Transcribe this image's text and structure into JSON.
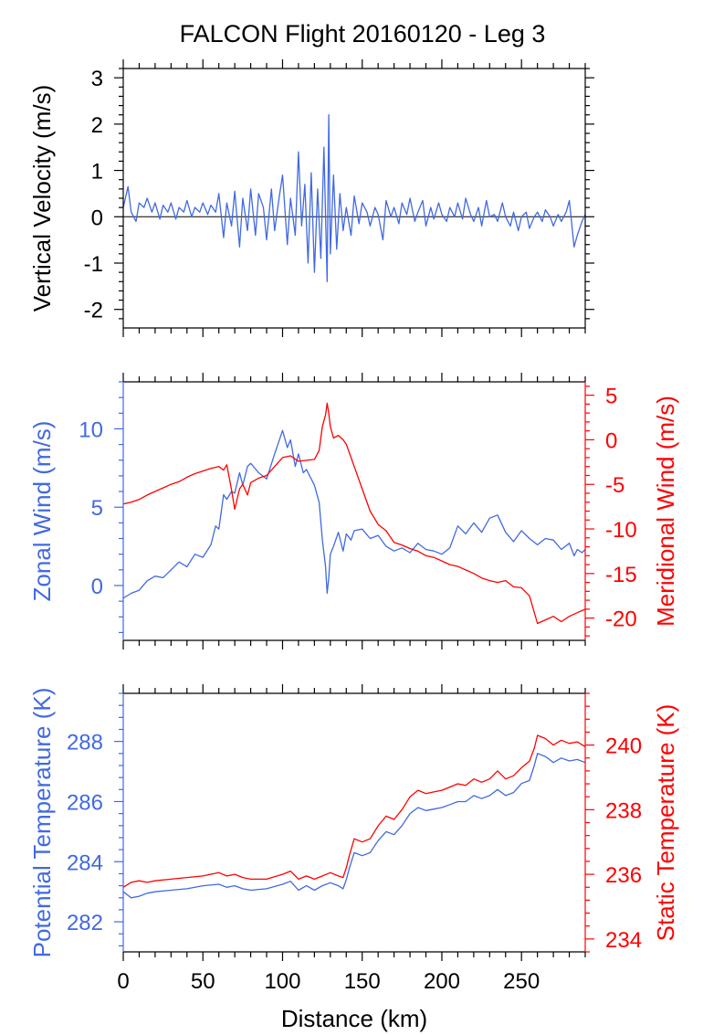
{
  "title": "FALCON Flight 20160120 - Leg 3",
  "colors": {
    "blue": "#4169e1",
    "red": "#ff0000",
    "black": "#000000"
  },
  "chart_data": [
    {
      "type": "line",
      "xlabel": "Distance (km)",
      "xlim": [
        0,
        290
      ],
      "xticks": [
        0,
        50,
        100,
        150,
        200,
        250
      ],
      "ylabel": "Vertical Velocity (m/s)",
      "ylim": [
        -2.4,
        3.2
      ],
      "yticks": [
        -2,
        -1,
        0,
        1,
        2,
        3
      ],
      "ytick_labels": [
        "-2",
        "-1",
        "0",
        "1",
        "2",
        "3"
      ],
      "zero_line": true,
      "series": [
        {
          "color": "#4169e1",
          "x": [
            0,
            3,
            5,
            8,
            10,
            13,
            15,
            18,
            20,
            23,
            25,
            28,
            30,
            33,
            35,
            38,
            40,
            43,
            45,
            48,
            50,
            53,
            55,
            58,
            60,
            63,
            65,
            68,
            70,
            73,
            75,
            78,
            80,
            83,
            85,
            88,
            90,
            93,
            95,
            98,
            100,
            103,
            105,
            108,
            110,
            112,
            114,
            116,
            118,
            120,
            122,
            124,
            126,
            128,
            129,
            130,
            132,
            134,
            136,
            138,
            140,
            143,
            145,
            148,
            150,
            153,
            155,
            158,
            160,
            163,
            165,
            168,
            170,
            173,
            175,
            178,
            180,
            183,
            185,
            188,
            190,
            193,
            195,
            198,
            200,
            203,
            205,
            208,
            210,
            213,
            215,
            218,
            220,
            223,
            225,
            228,
            230,
            233,
            235,
            238,
            240,
            243,
            245,
            248,
            250,
            253,
            255,
            258,
            260,
            263,
            265,
            268,
            270,
            273,
            275,
            278,
            280,
            283,
            285,
            288,
            290
          ],
          "y": [
            0.2,
            0.65,
            0.1,
            -0.1,
            0.3,
            0.2,
            0.4,
            0.1,
            0.3,
            -0.05,
            0.25,
            0.1,
            0.3,
            -0.05,
            0.2,
            0.1,
            0.35,
            0.0,
            0.2,
            0.1,
            0.3,
            0.05,
            0.25,
            0.1,
            0.5,
            -0.45,
            0.3,
            -0.2,
            0.55,
            -0.65,
            0.4,
            -0.3,
            0.6,
            -0.4,
            0.5,
            0.2,
            -0.5,
            0.6,
            -0.3,
            0.45,
            0.9,
            -0.6,
            0.4,
            -0.4,
            1.4,
            -0.2,
            0.7,
            -1.0,
            0.95,
            -1.2,
            0.6,
            -0.9,
            1.5,
            -1.4,
            2.2,
            -0.8,
            0.9,
            -0.7,
            0.5,
            -0.3,
            0.2,
            -0.4,
            0.45,
            -0.15,
            0.3,
            0.1,
            -0.2,
            0.2,
            0.05,
            -0.5,
            0.35,
            0.0,
            0.2,
            -0.15,
            0.3,
            0.05,
            0.4,
            -0.1,
            0.1,
            0.35,
            -0.2,
            0.2,
            -0.05,
            0.3,
            0.05,
            -0.1,
            0.2,
            0.0,
            0.3,
            -0.05,
            0.4,
            0.05,
            -0.1,
            0.2,
            -0.2,
            0.35,
            0.0,
            0.05,
            -0.1,
            0.3,
            0.0,
            -0.2,
            0.1,
            -0.3,
            0.0,
            0.1,
            -0.25,
            0.0,
            0.1,
            -0.1,
            0.15,
            0.0,
            -0.2,
            0.05,
            -0.1,
            0.1,
            0.35,
            -0.65,
            -0.4,
            -0.1,
            0.05
          ]
        }
      ]
    },
    {
      "type": "line",
      "xlabel": "Distance (km)",
      "xlim": [
        0,
        290
      ],
      "xticks": [
        0,
        50,
        100,
        150,
        200,
        250
      ],
      "ylabel": "Zonal Wind (m/s)",
      "ylim": [
        -3.5,
        13
      ],
      "yticks": [
        0,
        5,
        10
      ],
      "ytick_labels": [
        "0",
        "5",
        "10"
      ],
      "y2label": "Meridional Wind (m/s)",
      "y2lim": [
        -22.5,
        6.5
      ],
      "y2ticks": [
        -20,
        -15,
        -10,
        -5,
        0,
        5
      ],
      "y2tick_labels": [
        "-20",
        "-15",
        "-10",
        "-5",
        "0",
        "5"
      ],
      "series": [
        {
          "color": "#4169e1",
          "axis": "left",
          "x": [
            0,
            5,
            10,
            15,
            20,
            25,
            30,
            35,
            40,
            45,
            50,
            55,
            58,
            60,
            63,
            65,
            68,
            70,
            73,
            75,
            78,
            80,
            85,
            90,
            95,
            100,
            103,
            105,
            108,
            110,
            113,
            115,
            118,
            120,
            123,
            125,
            127,
            128,
            129,
            130,
            132,
            135,
            138,
            140,
            143,
            145,
            150,
            155,
            160,
            165,
            170,
            175,
            180,
            185,
            190,
            195,
            200,
            205,
            210,
            215,
            220,
            225,
            230,
            235,
            240,
            245,
            250,
            255,
            260,
            265,
            270,
            275,
            280,
            283,
            285,
            288,
            290
          ],
          "y": [
            -0.8,
            -0.5,
            -0.3,
            0.3,
            0.6,
            0.5,
            1.0,
            1.5,
            1.2,
            2.0,
            1.8,
            2.6,
            3.8,
            3.6,
            5.8,
            5.5,
            6.0,
            5.9,
            7.2,
            6.4,
            7.6,
            7.8,
            7.2,
            6.8,
            8.4,
            9.9,
            8.8,
            9.3,
            7.6,
            8.4,
            7.2,
            7.4,
            6.8,
            6.4,
            5.3,
            2.9,
            1.2,
            -0.5,
            0.5,
            2.0,
            2.5,
            3.4,
            2.2,
            3.3,
            2.9,
            3.5,
            3.6,
            3.0,
            3.2,
            2.5,
            2.2,
            2.4,
            2.1,
            2.7,
            2.3,
            2.2,
            2.0,
            2.4,
            3.8,
            3.3,
            4.0,
            3.4,
            4.3,
            4.5,
            3.4,
            2.8,
            3.5,
            3.0,
            2.6,
            3.0,
            2.9,
            2.3,
            2.7,
            1.9,
            2.3,
            2.1,
            2.3
          ]
        },
        {
          "color": "#ff0000",
          "axis": "right",
          "x": [
            0,
            5,
            10,
            15,
            20,
            25,
            30,
            35,
            40,
            45,
            50,
            55,
            60,
            63,
            65,
            68,
            70,
            73,
            75,
            78,
            80,
            85,
            90,
            95,
            100,
            105,
            110,
            115,
            120,
            123,
            125,
            127,
            128,
            129,
            130,
            132,
            135,
            138,
            140,
            145,
            150,
            155,
            160,
            165,
            170,
            175,
            180,
            185,
            190,
            195,
            200,
            205,
            210,
            215,
            220,
            225,
            230,
            235,
            240,
            245,
            250,
            255,
            260,
            265,
            270,
            275,
            280,
            285,
            290
          ],
          "y": [
            -7.2,
            -7.0,
            -6.7,
            -6.2,
            -5.8,
            -5.4,
            -5.0,
            -4.7,
            -4.2,
            -3.8,
            -3.5,
            -3.2,
            -3.0,
            -3.4,
            -2.8,
            -5.6,
            -7.8,
            -5.5,
            -5.0,
            -6.2,
            -4.8,
            -4.3,
            -4.0,
            -3.0,
            -2.0,
            -1.8,
            -2.4,
            -2.3,
            -2.2,
            -1.2,
            1.5,
            2.8,
            4.1,
            3.0,
            1.5,
            0.2,
            0.5,
            0.0,
            -0.5,
            -3.0,
            -5.5,
            -8.0,
            -9.5,
            -10.2,
            -11.5,
            -11.8,
            -12.2,
            -12.5,
            -13.0,
            -13.2,
            -13.6,
            -14.0,
            -14.2,
            -14.6,
            -15.0,
            -15.5,
            -15.8,
            -16.0,
            -15.8,
            -16.5,
            -16.6,
            -17.5,
            -20.6,
            -20.2,
            -19.8,
            -20.4,
            -19.8,
            -19.4,
            -19.0
          ]
        }
      ]
    },
    {
      "type": "line",
      "xlabel": "Distance (km)",
      "xlim": [
        0,
        290
      ],
      "xticks": [
        0,
        50,
        100,
        150,
        200,
        250
      ],
      "xtick_labels": [
        "0",
        "50",
        "100",
        "150",
        "200",
        "250"
      ],
      "ylabel": "Potential Temperature (K)",
      "ylim": [
        281,
        289.6
      ],
      "yticks": [
        282,
        284,
        286,
        288
      ],
      "ytick_labels": [
        "282",
        "284",
        "286",
        "288"
      ],
      "y2label": "Static Temperature (K)",
      "y2lim": [
        233.6,
        241.6
      ],
      "y2ticks": [
        234,
        236,
        238,
        240
      ],
      "y2tick_labels": [
        "234",
        "236",
        "238",
        "240"
      ],
      "series": [
        {
          "color": "#4169e1",
          "axis": "left",
          "x": [
            0,
            5,
            10,
            15,
            20,
            30,
            40,
            50,
            60,
            65,
            70,
            75,
            80,
            90,
            100,
            105,
            110,
            115,
            120,
            125,
            130,
            135,
            138,
            140,
            142,
            145,
            150,
            155,
            160,
            165,
            170,
            175,
            180,
            185,
            190,
            195,
            200,
            205,
            210,
            215,
            220,
            225,
            230,
            235,
            240,
            245,
            250,
            255,
            258,
            260,
            265,
            270,
            275,
            280,
            285,
            290
          ],
          "y": [
            283.0,
            282.8,
            282.85,
            282.95,
            283.0,
            283.05,
            283.1,
            283.2,
            283.25,
            283.15,
            283.2,
            283.1,
            283.05,
            283.1,
            283.25,
            283.35,
            283.05,
            283.2,
            283.05,
            283.2,
            283.3,
            283.2,
            283.1,
            283.4,
            283.8,
            284.3,
            284.2,
            284.3,
            284.7,
            285.0,
            284.9,
            285.2,
            285.6,
            285.8,
            285.7,
            285.75,
            285.8,
            285.9,
            286.0,
            286.0,
            286.2,
            286.1,
            286.2,
            286.4,
            286.2,
            286.3,
            286.6,
            286.7,
            287.2,
            287.6,
            287.5,
            287.3,
            287.45,
            287.35,
            287.4,
            287.3
          ]
        },
        {
          "color": "#ff0000",
          "axis": "right",
          "x": [
            0,
            5,
            10,
            15,
            20,
            30,
            40,
            50,
            60,
            65,
            70,
            75,
            80,
            90,
            100,
            105,
            110,
            115,
            120,
            125,
            130,
            135,
            138,
            140,
            142,
            145,
            150,
            155,
            160,
            165,
            170,
            175,
            180,
            185,
            190,
            195,
            200,
            205,
            210,
            215,
            220,
            225,
            230,
            235,
            240,
            245,
            250,
            255,
            258,
            260,
            265,
            270,
            275,
            280,
            285,
            290
          ],
          "y": [
            235.6,
            235.75,
            235.8,
            235.75,
            235.8,
            235.85,
            235.9,
            235.95,
            236.05,
            235.95,
            236.0,
            235.9,
            235.85,
            235.85,
            236.0,
            236.1,
            235.85,
            235.95,
            235.85,
            235.95,
            236.05,
            235.95,
            235.9,
            236.2,
            236.6,
            237.1,
            237.0,
            237.1,
            237.5,
            237.8,
            237.7,
            238.0,
            238.4,
            238.6,
            238.5,
            238.55,
            238.6,
            238.7,
            238.8,
            238.75,
            238.95,
            238.85,
            238.95,
            239.2,
            238.95,
            239.05,
            239.3,
            239.5,
            239.9,
            240.3,
            240.2,
            240.0,
            240.15,
            240.05,
            240.1,
            239.95
          ]
        }
      ]
    }
  ]
}
